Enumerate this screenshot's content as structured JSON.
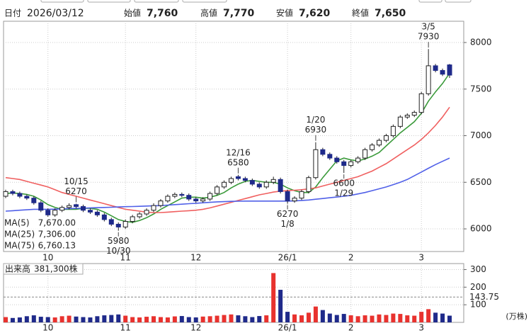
{
  "header": {
    "date_label": "日付",
    "date": "2026/03/12",
    "items": [
      {
        "label": "始値",
        "value": "7,760"
      },
      {
        "label": "高値",
        "value": "7,770",
        "color": "#e8322e"
      },
      {
        "label": "安値",
        "value": "7,620",
        "color": "#2e9e3a"
      },
      {
        "label": "終値",
        "value": "7,650"
      }
    ]
  },
  "chart_data": {
    "type": "candlestick",
    "categories": [
      null,
      null,
      null,
      null,
      null,
      null,
      "10",
      null,
      null,
      null,
      null,
      null,
      null,
      null,
      null,
      null,
      null,
      "11",
      null,
      null,
      null,
      null,
      null,
      null,
      null,
      null,
      null,
      "12",
      null,
      null,
      null,
      null,
      null,
      null,
      null,
      null,
      null,
      null,
      null,
      null,
      "26/1",
      null,
      null,
      null,
      null,
      null,
      null,
      null,
      null,
      "2",
      null,
      null,
      null,
      null,
      null,
      null,
      null,
      null,
      null,
      "3",
      null,
      null,
      null,
      null
    ],
    "open": [
      6350,
      6400,
      6380,
      6350,
      6330,
      6280,
      6200,
      6150,
      6200,
      6230,
      6260,
      6240,
      6200,
      6180,
      6150,
      6100,
      6050,
      6020,
      6080,
      6130,
      6160,
      6200,
      6250,
      6300,
      6350,
      6370,
      6360,
      6320,
      6300,
      6320,
      6380,
      6450,
      6500,
      6560,
      6540,
      6520,
      6480,
      6450,
      6500,
      6530,
      6400,
      6300,
      6330,
      6400,
      6550,
      6850,
      6800,
      6760,
      6720,
      6680,
      6720,
      6760,
      6850,
      6900,
      6950,
      7000,
      7100,
      7200,
      7220,
      7250,
      7450,
      7750,
      7700,
      7760
    ],
    "high": [
      6420,
      6420,
      6400,
      6370,
      6350,
      6300,
      6220,
      6220,
      6250,
      6275,
      6270,
      6260,
      6220,
      6200,
      6170,
      6120,
      6070,
      6100,
      6150,
      6180,
      6220,
      6275,
      6320,
      6370,
      6390,
      6390,
      6380,
      6340,
      6340,
      6400,
      6470,
      6520,
      6560,
      6580,
      6560,
      6540,
      6500,
      6520,
      6560,
      6550,
      6420,
      6350,
      6420,
      6570,
      6930,
      6870,
      6820,
      6780,
      6740,
      6740,
      6780,
      6870,
      6920,
      6970,
      7020,
      7120,
      7220,
      7240,
      7270,
      7470,
      7930,
      7770,
      7720,
      7770
    ],
    "low": [
      6330,
      6360,
      6330,
      6310,
      6260,
      6180,
      6130,
      6130,
      6180,
      6210,
      6220,
      6180,
      6160,
      6130,
      6080,
      6030,
      5980,
      6000,
      6060,
      6110,
      6140,
      6180,
      6230,
      6280,
      6330,
      6340,
      6300,
      6280,
      6280,
      6300,
      6360,
      6430,
      6480,
      6520,
      6500,
      6460,
      6430,
      6430,
      6480,
      6380,
      6270,
      6280,
      6310,
      6380,
      6530,
      6780,
      6740,
      6700,
      6600,
      6660,
      6700,
      6740,
      6830,
      6880,
      6930,
      6980,
      7080,
      7180,
      7200,
      7230,
      7430,
      7680,
      7640,
      7620
    ],
    "close": [
      6400,
      6380,
      6350,
      6330,
      6280,
      6200,
      6150,
      6200,
      6230,
      6250,
      6240,
      6200,
      6180,
      6150,
      6100,
      6050,
      6020,
      6080,
      6130,
      6160,
      6200,
      6250,
      6300,
      6350,
      6370,
      6360,
      6320,
      6300,
      6320,
      6380,
      6450,
      6500,
      6540,
      6540,
      6520,
      6480,
      6450,
      6500,
      6530,
      6400,
      6300,
      6330,
      6400,
      6550,
      6850,
      6800,
      6760,
      6720,
      6680,
      6720,
      6760,
      6850,
      6900,
      6950,
      7000,
      7100,
      7200,
      7220,
      7250,
      7450,
      7750,
      7700,
      7660,
      7650
    ],
    "up_color": "#ffffff",
    "down_color": "#1f2a8a",
    "ylim": [
      5757,
      8228
    ],
    "yticks": [
      6000,
      6500,
      7000,
      7500,
      8000
    ],
    "grid": true,
    "series": [
      {
        "name": "MA(5)",
        "color": "#3a9a3a",
        "last_label": "7,670.00",
        "values": [
          6380,
          6385,
          6380,
          6370,
          6350,
          6310,
          6260,
          6230,
          6210,
          6210,
          6210,
          6220,
          6220,
          6210,
          6180,
          6140,
          6100,
          6080,
          6070,
          6090,
          6120,
          6160,
          6210,
          6250,
          6290,
          6330,
          6340,
          6340,
          6330,
          6340,
          6360,
          6390,
          6440,
          6480,
          6510,
          6520,
          6510,
          6500,
          6500,
          6480,
          6440,
          6410,
          6390,
          6390,
          6450,
          6550,
          6640,
          6730,
          6760,
          6740,
          6730,
          6750,
          6780,
          6820,
          6890,
          6960,
          7030,
          7090,
          7150,
          7240,
          7370,
          7470,
          7560,
          7670
        ]
      },
      {
        "name": "MA(25)",
        "color": "#f06060",
        "last_label": "7,306.00",
        "values": [
          6550,
          6540,
          6530,
          6510,
          6490,
          6470,
          6450,
          6420,
          6390,
          6370,
          6350,
          6330,
          6310,
          6290,
          6270,
          6250,
          6230,
          6210,
          6200,
          6190,
          6180,
          6175,
          6175,
          6180,
          6185,
          6190,
          6195,
          6200,
          6210,
          6225,
          6245,
          6265,
          6285,
          6305,
          6325,
          6345,
          6365,
          6380,
          6395,
          6405,
          6410,
          6415,
          6420,
          6430,
          6440,
          6460,
          6480,
          6500,
          6520,
          6540,
          6560,
          6590,
          6620,
          6660,
          6700,
          6750,
          6800,
          6850,
          6900,
          6960,
          7030,
          7110,
          7200,
          7306
        ]
      },
      {
        "name": "MA(75)",
        "color": "#5060e8",
        "last_label": "6,760.13",
        "values": [
          6190,
          6195,
          6200,
          6205,
          6210,
          6210,
          6210,
          6212,
          6215,
          6218,
          6220,
          6222,
          6225,
          6228,
          6230,
          6232,
          6235,
          6238,
          6240,
          6242,
          6245,
          6248,
          6250,
          6255,
          6260,
          6265,
          6270,
          6275,
          6280,
          6285,
          6290,
          6292,
          6295,
          6297,
          6298,
          6298,
          6298,
          6298,
          6298,
          6298,
          6298,
          6300,
          6305,
          6310,
          6318,
          6326,
          6334,
          6342,
          6350,
          6360,
          6375,
          6390,
          6410,
          6430,
          6450,
          6475,
          6500,
          6530,
          6570,
          6610,
          6650,
          6690,
          6725,
          6760.13
        ]
      }
    ],
    "annotations": [
      {
        "date": "10/15",
        "value": 6270,
        "type": "high"
      },
      {
        "date": "10/30",
        "value": 5980,
        "type": "low"
      },
      {
        "date": "12/16",
        "value": 6580,
        "type": "high"
      },
      {
        "date": "1/8",
        "value": 6270,
        "type": "low"
      },
      {
        "date": "1/20",
        "value": 6930,
        "type": "high"
      },
      {
        "date": "1/29",
        "value": 6600,
        "type": "low"
      },
      {
        "date": "3/5",
        "value": 7930,
        "type": "high"
      }
    ],
    "volume": {
      "label": "出来高",
      "label_value": "381,300株",
      "unit": "(万株)",
      "up_color": "#e8322e",
      "down_color": "#1f2a8a",
      "values": [
        30,
        25,
        28,
        35,
        40,
        32,
        30,
        28,
        35,
        38,
        33,
        30,
        28,
        35,
        40,
        42,
        45,
        38,
        30,
        28,
        32,
        35,
        30,
        28,
        34,
        36,
        30,
        28,
        33,
        35,
        38,
        42,
        45,
        40,
        35,
        30,
        36,
        40,
        280,
        185,
        60,
        45,
        40,
        55,
        90,
        70,
        50,
        42,
        48,
        40,
        35,
        40,
        38,
        45,
        42,
        50,
        48,
        40,
        38,
        60,
        75,
        55,
        50,
        38.13
      ],
      "ylim": [
        0,
        334
      ],
      "yticks": [
        100,
        200,
        300
      ],
      "average": 143.75,
      "average_color": "#f05020"
    }
  }
}
